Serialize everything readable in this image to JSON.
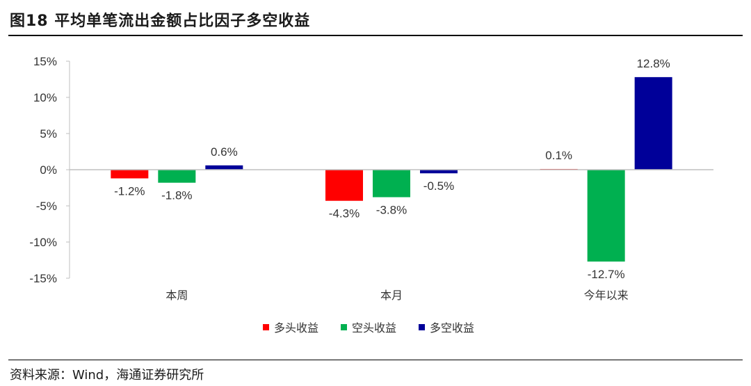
{
  "title": "图18 平均单笔流出金额占比因子多空收益",
  "source": "资料来源：Wind，海通证券研究所",
  "chart_data": {
    "type": "bar",
    "categories": [
      "本周",
      "本月",
      "今年以来"
    ],
    "series": [
      {
        "name": "多头收益",
        "color": "#ff0000",
        "values": [
          -1.2,
          -4.3,
          0.1
        ],
        "labels": [
          "-1.2%",
          "-4.3%",
          "0.1%"
        ]
      },
      {
        "name": "空头收益",
        "color": "#00b050",
        "values": [
          -1.8,
          -3.8,
          -12.7
        ],
        "labels": [
          "-1.8%",
          "-3.8%",
          "-12.7%"
        ]
      },
      {
        "name": "多空收益",
        "color": "#000099",
        "values": [
          0.6,
          -0.5,
          12.8
        ],
        "labels": [
          "0.6%",
          "-0.5%",
          "12.8%"
        ]
      }
    ],
    "ylim": [
      -15,
      15
    ],
    "yticks": [
      15,
      10,
      5,
      0,
      -5,
      -10,
      -15
    ],
    "ytick_labels": [
      "15%",
      "10%",
      "5%",
      "0%",
      "-5%",
      "-10%",
      "-15%"
    ],
    "grid": false,
    "legend": "bottom-center"
  }
}
